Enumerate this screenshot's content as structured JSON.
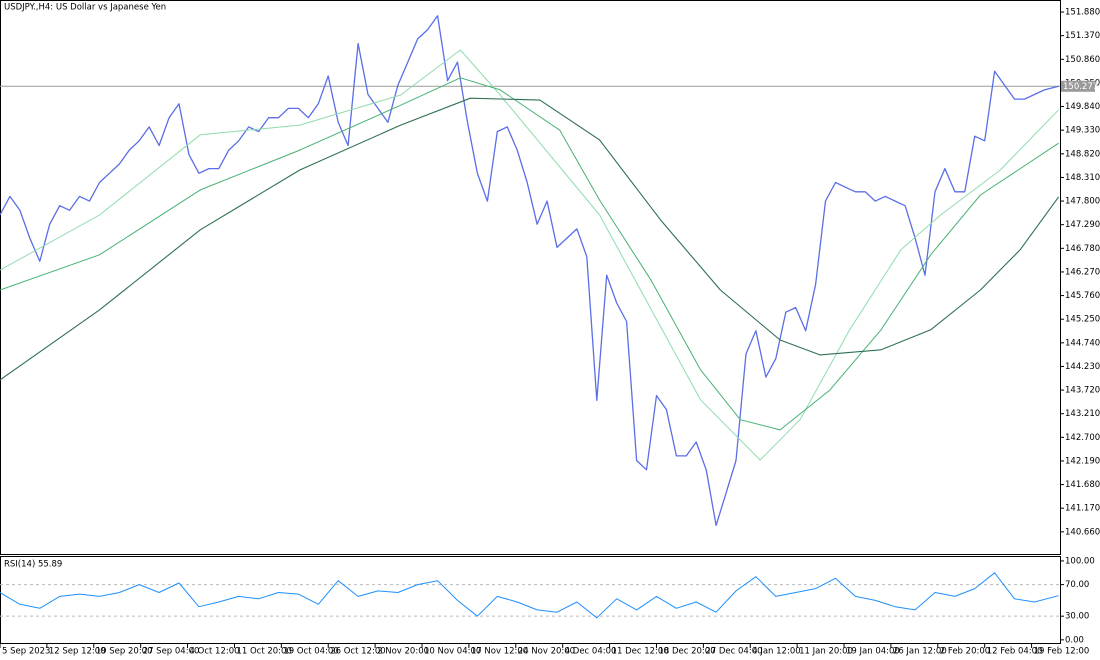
{
  "chart_data": [
    {
      "type": "line",
      "title": "USDJPY.,H4: US Dollar vs Japanese Yen",
      "xlim": [
        0,
        746
      ],
      "xticks": [
        {
          "value": 0,
          "label": "5 Sep 2023"
        },
        {
          "value": 33,
          "label": "12 Sep 12:00"
        },
        {
          "value": 66,
          "label": "19 Sep 20:00"
        },
        {
          "value": 99,
          "label": "27 Sep 04:00"
        },
        {
          "value": 132,
          "label": "4 Oct 12:00"
        },
        {
          "value": 165,
          "label": "11 Oct 20:00"
        },
        {
          "value": 198,
          "label": "19 Oct 04:00"
        },
        {
          "value": 231,
          "label": "26 Oct 12:00"
        },
        {
          "value": 264,
          "label": "2 Nov 20:00"
        },
        {
          "value": 297,
          "label": "10 Nov 04:00"
        },
        {
          "value": 330,
          "label": "17 Nov 12:00"
        },
        {
          "value": 363,
          "label": "24 Nov 20:00"
        },
        {
          "value": 396,
          "label": "4 Dec 04:00"
        },
        {
          "value": 429,
          "label": "11 Dec 12:00"
        },
        {
          "value": 462,
          "label": "18 Dec 20:00"
        },
        {
          "value": 495,
          "label": "27 Dec 04:00"
        },
        {
          "value": 528,
          "label": "4 Jan 12:00"
        },
        {
          "value": 561,
          "label": "11 Jan 20:00"
        },
        {
          "value": 594,
          "label": "19 Jan 04:00"
        },
        {
          "value": 627,
          "label": "26 Jan 12:00"
        },
        {
          "value": 660,
          "label": "2 Feb 20:00"
        },
        {
          "value": 693,
          "label": "12 Feb 04:00"
        },
        {
          "value": 726,
          "label": "19 Feb 12:00"
        }
      ],
      "ylim": [
        140.16,
        152.14
      ],
      "yticks": [
        {
          "value": 151.88,
          "label": "151.880"
        },
        {
          "value": 151.37,
          "label": "151.370"
        },
        {
          "value": 150.86,
          "label": "150.860"
        },
        {
          "value": 150.35,
          "label": "150.350"
        },
        {
          "value": 149.84,
          "label": "149.840"
        },
        {
          "value": 149.33,
          "label": "149.330"
        },
        {
          "value": 148.82,
          "label": "148.820"
        },
        {
          "value": 148.31,
          "label": "148.310"
        },
        {
          "value": 147.8,
          "label": "147.800"
        },
        {
          "value": 147.29,
          "label": "147.290"
        },
        {
          "value": 146.78,
          "label": "146.780"
        },
        {
          "value": 146.27,
          "label": "146.270"
        },
        {
          "value": 145.76,
          "label": "145.760"
        },
        {
          "value": 145.25,
          "label": "145.250"
        },
        {
          "value": 144.74,
          "label": "144.740"
        },
        {
          "value": 144.23,
          "label": "144.230"
        },
        {
          "value": 143.72,
          "label": "143.720"
        },
        {
          "value": 143.21,
          "label": "143.210"
        },
        {
          "value": 142.7,
          "label": "142.700"
        },
        {
          "value": 142.19,
          "label": "142.190"
        },
        {
          "value": 141.68,
          "label": "141.680"
        },
        {
          "value": 141.17,
          "label": "141.170"
        },
        {
          "value": 140.66,
          "label": "140.660"
        }
      ],
      "current_price": {
        "value": 150.277,
        "label": "150.277"
      },
      "series": [
        {
          "color": "#5a6ee6",
          "width": 1.3,
          "x": [
            0,
            7,
            14,
            21,
            28,
            35,
            42,
            49,
            56,
            63,
            70,
            77,
            84,
            91,
            98,
            105,
            112,
            119,
            126,
            133,
            140,
            147,
            154,
            161,
            168,
            175,
            182,
            189,
            196,
            203,
            210,
            217,
            224,
            231,
            238,
            245,
            252,
            259,
            266,
            273,
            280,
            287,
            294,
            301,
            308,
            315,
            322,
            329,
            336,
            343,
            350,
            357,
            364,
            371,
            378,
            385,
            392,
            399,
            406,
            413,
            420,
            427,
            434,
            441,
            448,
            455,
            462,
            469,
            476,
            483,
            490,
            497,
            504,
            511,
            518,
            525,
            532,
            539,
            546,
            553,
            560,
            567,
            574,
            581,
            588,
            595,
            602,
            609,
            616,
            623,
            630,
            637,
            644,
            651,
            658,
            665,
            672,
            679,
            686,
            693,
            700,
            707,
            714,
            721,
            728,
            735,
            745
          ],
          "values": [
            147.5,
            147.9,
            147.6,
            147.0,
            146.5,
            147.3,
            147.7,
            147.6,
            147.9,
            147.8,
            148.2,
            148.4,
            148.6,
            148.9,
            149.1,
            149.4,
            149.0,
            149.6,
            149.9,
            148.8,
            148.4,
            148.5,
            148.5,
            148.9,
            149.1,
            149.4,
            149.3,
            149.6,
            149.6,
            149.8,
            149.8,
            149.6,
            149.9,
            150.5,
            149.5,
            149.0,
            151.2,
            150.1,
            149.8,
            149.5,
            150.3,
            150.8,
            151.3,
            151.5,
            151.8,
            150.4,
            150.8,
            149.5,
            148.4,
            147.8,
            149.3,
            149.4,
            148.9,
            148.2,
            147.3,
            147.8,
            146.8,
            147.0,
            147.2,
            146.6,
            143.5,
            146.2,
            145.6,
            145.2,
            142.2,
            142.0,
            143.6,
            143.3,
            142.3,
            142.3,
            142.6,
            142.0,
            140.8,
            141.5,
            142.2,
            144.5,
            145.0,
            144.0,
            144.4,
            145.4,
            145.5,
            145.0,
            146.0,
            147.8,
            148.2,
            148.1,
            148.0,
            148.0,
            147.8,
            147.9,
            147.8,
            147.7,
            147.0,
            146.2,
            148.0,
            148.5,
            148.0,
            148.0,
            149.2,
            149.1,
            150.6,
            150.3,
            150.0,
            150.0,
            150.1,
            150.2,
            150.277
          ]
        },
        {
          "color": "#8fdcae",
          "width": 1,
          "x": [
            0,
            70,
            141,
            211,
            282,
            324,
            352,
            422,
            493,
            535,
            563,
            598,
            634,
            662,
            704,
            745
          ],
          "values": [
            146.31,
            147.5,
            149.23,
            149.44,
            150.09,
            151.06,
            150.09,
            147.5,
            143.51,
            142.21,
            143.08,
            145.02,
            146.75,
            147.5,
            148.47,
            149.77
          ]
        },
        {
          "color": "#47b173",
          "width": 1,
          "x": [
            0,
            70,
            141,
            211,
            282,
            324,
            352,
            394,
            422,
            458,
            493,
            521,
            549,
            584,
            620,
            655,
            690,
            745
          ],
          "values": [
            145.88,
            146.64,
            148.04,
            148.9,
            149.87,
            150.46,
            150.2,
            149.33,
            147.82,
            146.1,
            144.16,
            143.08,
            142.86,
            143.72,
            145.02,
            146.64,
            147.93,
            149.05
          ]
        },
        {
          "color": "#2e7150",
          "width": 1.1,
          "x": [
            0,
            70,
            141,
            211,
            282,
            331,
            380,
            422,
            465,
            507,
            549,
            577,
            620,
            655,
            690,
            718,
            745
          ],
          "values": [
            143.94,
            145.45,
            147.18,
            148.47,
            149.44,
            150.02,
            149.98,
            149.12,
            147.39,
            145.88,
            144.8,
            144.48,
            144.59,
            145.02,
            145.88,
            146.75,
            147.89
          ]
        }
      ]
    },
    {
      "type": "line",
      "title": "RSI(14) 55.89",
      "xlim": [
        0,
        746
      ],
      "ylim": [
        -4,
        105
      ],
      "yticks": [
        {
          "value": 100,
          "label": "100.00"
        },
        {
          "value": 70,
          "label": "70.00"
        },
        {
          "value": 30,
          "label": "30.00"
        },
        {
          "value": 0,
          "label": "0.00"
        }
      ],
      "levels": [
        70,
        30
      ],
      "series": [
        {
          "color": "#1e90ff",
          "width": 1,
          "x": [
            0,
            14,
            28,
            42,
            56,
            70,
            84,
            98,
            112,
            126,
            140,
            154,
            168,
            182,
            196,
            210,
            224,
            238,
            252,
            266,
            280,
            294,
            308,
            322,
            336,
            350,
            364,
            378,
            392,
            406,
            420,
            434,
            448,
            462,
            476,
            490,
            504,
            518,
            532,
            546,
            560,
            574,
            588,
            602,
            616,
            630,
            644,
            658,
            672,
            686,
            700,
            714,
            728,
            745
          ],
          "values": [
            60,
            45,
            40,
            55,
            58,
            55,
            60,
            70,
            60,
            72,
            42,
            48,
            55,
            52,
            60,
            58,
            45,
            75,
            55,
            62,
            60,
            70,
            75,
            50,
            30,
            55,
            48,
            38,
            35,
            48,
            28,
            52,
            38,
            55,
            40,
            48,
            35,
            62,
            80,
            55,
            60,
            65,
            78,
            55,
            50,
            42,
            38,
            60,
            55,
            65,
            85,
            52,
            48,
            55.89
          ]
        }
      ]
    }
  ]
}
